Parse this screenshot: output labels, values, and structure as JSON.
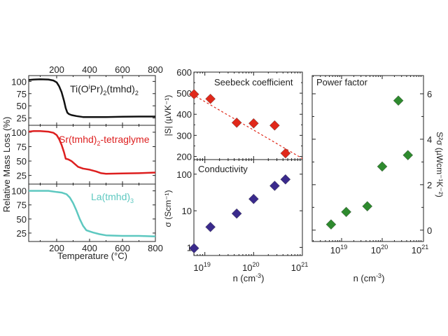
{
  "chart_data": [
    {
      "type": "line",
      "id": "tga",
      "xlabel": "Temperature (°C)",
      "ylabel": "Relative Mass Loss (%)",
      "xlim": [
        30,
        800
      ],
      "xticks": [
        200,
        400,
        600,
        800
      ],
      "ylim": [
        10,
        112
      ],
      "yticks": [
        25,
        50,
        75,
        100
      ],
      "series": [
        {
          "name": "Ti(OiPr)2(tmhd)2",
          "label_main": "Ti(O",
          "label_sup": "i",
          "label_rest": "Pr)",
          "label_sub1": "2",
          "label_mid": "(tmhd)",
          "label_sub2": "2",
          "color": "#111111",
          "x": [
            30,
            60,
            100,
            150,
            180,
            200,
            215,
            230,
            245,
            255,
            265,
            275,
            290,
            320,
            360,
            400,
            500,
            600,
            700,
            800
          ],
          "y": [
            103,
            104,
            104.5,
            104,
            102,
            98,
            90,
            78,
            60,
            45,
            36,
            33,
            31,
            29,
            27,
            27,
            27,
            27.5,
            28,
            28
          ]
        },
        {
          "name": "Sr(tmhd)2-tetraglyme",
          "label_main": "Sr(tmhd)",
          "label_sub1": "2",
          "label_rest": "-tetraglyme",
          "color": "#dd1f1f",
          "x": [
            30,
            60,
            100,
            150,
            180,
            200,
            215,
            230,
            245,
            255,
            270,
            290,
            310,
            330,
            360,
            400,
            440,
            470,
            500,
            600,
            700,
            800
          ],
          "y": [
            101,
            102,
            102,
            101,
            99,
            95,
            88,
            78,
            65,
            54,
            53,
            50,
            45,
            40,
            37,
            35,
            32,
            29,
            28,
            28.5,
            29,
            30
          ]
        },
        {
          "name": "La(tmhd)3",
          "label_main": "La(tmhd)",
          "label_sub1": "3",
          "color": "#5dc8c0",
          "x": [
            30,
            100,
            150,
            200,
            230,
            260,
            280,
            300,
            320,
            340,
            360,
            380,
            420,
            460,
            500,
            550,
            600,
            700,
            800
          ],
          "y": [
            100,
            100,
            100,
            98,
            97,
            94,
            88,
            78,
            65,
            50,
            38,
            30,
            26,
            23,
            21,
            20.5,
            20,
            20,
            19
          ]
        }
      ]
    },
    {
      "type": "scatter",
      "id": "seebeck",
      "title": "Seebeck coefficient",
      "ylabel": "|S| (µVK⁻¹)",
      "xscale": "log",
      "xlim": [
        1e+18,
        1e+21
      ],
      "ylim": [
        185,
        600
      ],
      "yticks": [
        200,
        300,
        400,
        500,
        600
      ],
      "color": "#e0281a",
      "x": [
        6e+18,
        1.3e+19,
        4.5e+19,
        1e+20,
        2.7e+20,
        4.5e+20
      ],
      "y": [
        495,
        473,
        360,
        357,
        347,
        215
      ],
      "fit_line": {
        "x": [
          1e+18,
          1e+21
        ],
        "y": [
          595,
          190
        ],
        "style": "dashed"
      }
    },
    {
      "type": "scatter",
      "id": "conductivity",
      "title": "Conductivity",
      "ylabel": "σ (Scm⁻¹)",
      "xlabel": "n (cm⁻³)",
      "xscale": "log",
      "yscale": "log",
      "xlim": [
        1e+18,
        1e+21
      ],
      "ylim": [
        0.6,
        250
      ],
      "yticks": [
        1,
        10,
        100
      ],
      "ytick_labels": [
        "1",
        "10",
        "100"
      ],
      "xticks": [
        1e+19,
        1e+20,
        1e+21
      ],
      "xtick_labels": [
        "10",
        "10",
        "10"
      ],
      "xtick_exps": [
        "19",
        "20",
        "21"
      ],
      "color": "#3a2a8c",
      "x": [
        6e+18,
        1.3e+19,
        4.5e+19,
        1e+20,
        2.7e+20,
        4.5e+20
      ],
      "y": [
        0.95,
        3.6,
        8.4,
        21,
        48,
        72
      ]
    },
    {
      "type": "scatter",
      "id": "power-factor",
      "title": "Power factor",
      "ylabel": "S²σ (µWcm⁻¹K⁻²)",
      "xlabel": "n (cm⁻³)",
      "xscale": "log",
      "xlim": [
        1.8e+18,
        1e+21
      ],
      "ylim": [
        -0.5,
        6.8
      ],
      "yticks": [
        0,
        2,
        4,
        6
      ],
      "xticks": [
        1e+19,
        1e+20,
        1e+21
      ],
      "xtick_labels": [
        "10",
        "10",
        "10"
      ],
      "xtick_exps": [
        "19",
        "20",
        "21"
      ],
      "color": "#2e8a2e",
      "x": [
        5.5e+18,
        1.3e+19,
        4.3e+19,
        1e+20,
        2.5e+20,
        4.3e+20
      ],
      "y": [
        0.25,
        0.8,
        1.05,
        2.8,
        5.7,
        3.3
      ]
    }
  ]
}
